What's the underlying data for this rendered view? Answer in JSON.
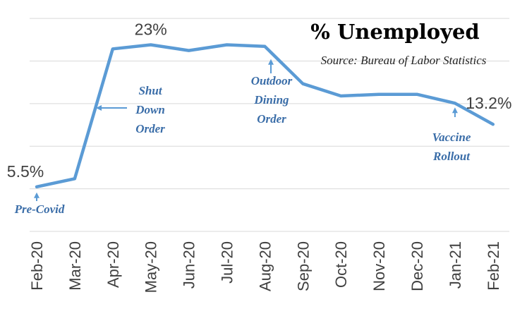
{
  "chart_data": {
    "type": "line",
    "title": "% Unemployed",
    "subtitle": "Source: Bureau of Labor Statistics",
    "categories": [
      "Feb-20",
      "Mar-20",
      "Apr-20",
      "May-20",
      "Jun-20",
      "Jul-20",
      "Aug-20",
      "Sep-20",
      "Oct-20",
      "Nov-20",
      "Dec-20",
      "Jan-21",
      "Feb-21"
    ],
    "series": [
      {
        "values": [
          5.5,
          6.5,
          22.5,
          23.0,
          22.3,
          23.0,
          22.8,
          18.2,
          16.7,
          16.9,
          16.9,
          15.8,
          13.2
        ]
      }
    ],
    "data_labels": [
      {
        "index": 0,
        "text": "5.5%"
      },
      {
        "index": 3,
        "text": "23%"
      },
      {
        "index": 12,
        "text": "13.2%"
      }
    ],
    "annotations": [
      {
        "index": 0,
        "lines": [
          "Pre-Covid"
        ]
      },
      {
        "index": 1.5,
        "lines": [
          "Shut",
          "Down",
          "Order"
        ]
      },
      {
        "index": 6,
        "lines": [
          "Outdoor",
          "Dining",
          "Order"
        ]
      },
      {
        "index": 11,
        "lines": [
          "Vaccine",
          "Rollout"
        ]
      }
    ],
    "ylim": [
      0,
      28
    ],
    "grid": true,
    "colors": {
      "series": "#5b9bd5",
      "grid": "#d9d9d9",
      "annotation": "#3a6da8"
    }
  }
}
